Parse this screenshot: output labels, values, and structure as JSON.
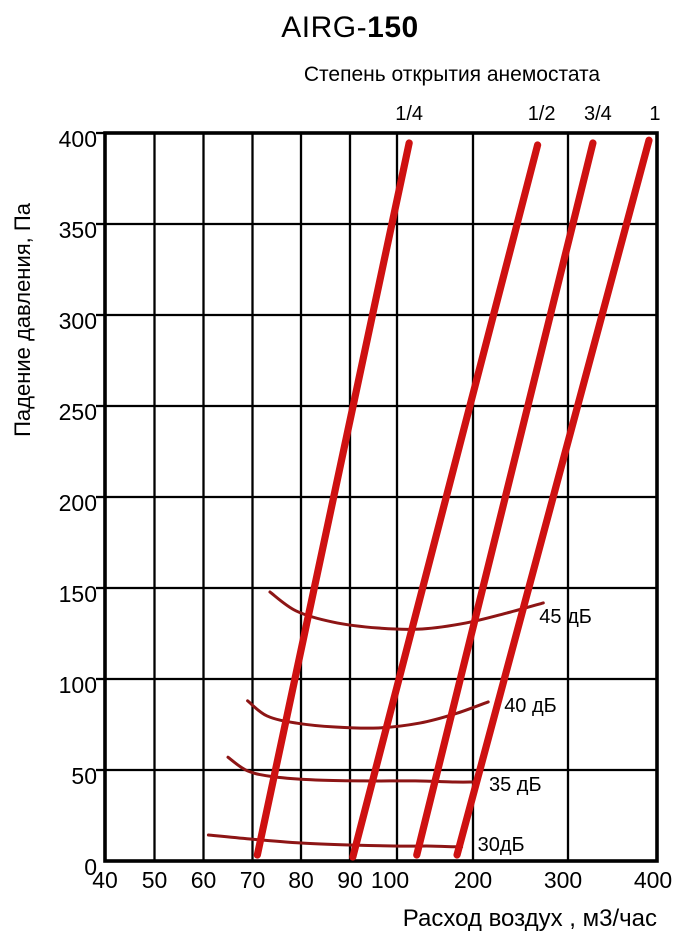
{
  "title": {
    "prefix": "AIRG-",
    "model": "150",
    "full": "AIRG-150"
  },
  "chart_data": {
    "type": "line",
    "title": "AIRG-150",
    "top_axis": {
      "label": "Степень открытия анемостата",
      "tick_labels": [
        "1/4",
        "1/2",
        "3/4",
        "1"
      ]
    },
    "x_axis": {
      "label": "Расход воздух , м3/час",
      "ticks": [
        40,
        50,
        60,
        70,
        80,
        90,
        100,
        200,
        300,
        400
      ],
      "range": [
        40,
        400
      ],
      "scale": "compressed-log-like"
    },
    "y_axis": {
      "label": "Падение давления, Па",
      "ticks": [
        0,
        50,
        100,
        150,
        200,
        250,
        300,
        350,
        400
      ],
      "range": [
        0,
        400
      ],
      "unit": "Па"
    },
    "grid": true,
    "colors": {
      "opening_line": "#ce1111",
      "noise_line": "#8d1515",
      "axis": "#000000"
    },
    "opening_series": [
      {
        "name": "1/4",
        "points": [
          [
            71,
            3.3
          ],
          [
            116,
            394.5
          ]
        ]
      },
      {
        "name": "1/2",
        "points": [
          [
            90.6,
            2.2
          ],
          [
            268,
            393.4
          ]
        ]
      },
      {
        "name": "3/4",
        "points": [
          [
            126,
            3.3
          ],
          [
            328,
            394.5
          ]
        ]
      },
      {
        "name": "1",
        "points": [
          [
            179,
            3.3
          ],
          [
            391,
            396
          ]
        ]
      }
    ],
    "noise_series": [
      {
        "name": "30дБ",
        "points": [
          [
            61,
            14.3
          ],
          [
            69.5,
            12.1
          ],
          [
            80,
            9.9
          ],
          [
            90,
            8.8
          ],
          [
            104,
            8.2
          ],
          [
            146,
            8.2
          ],
          [
            185,
            7.7
          ]
        ]
      },
      {
        "name": "35 дБ",
        "points": [
          [
            65,
            57
          ],
          [
            69,
            49.5
          ],
          [
            74.6,
            46.2
          ],
          [
            83,
            44.5
          ],
          [
            93,
            44
          ],
          [
            124,
            44
          ],
          [
            176,
            43.4
          ],
          [
            200,
            43.4
          ]
        ]
      },
      {
        "name": "40 дБ",
        "points": [
          [
            69,
            88
          ],
          [
            73,
            79.7
          ],
          [
            79,
            75.8
          ],
          [
            87,
            73.6
          ],
          [
            96,
            73.1
          ],
          [
            130,
            75.8
          ],
          [
            176,
            80.8
          ],
          [
            216,
            87.4
          ]
        ]
      },
      {
        "name": "45 дБ",
        "points": [
          [
            73.6,
            147.8
          ],
          [
            79,
            137.4
          ],
          [
            86.5,
            131.3
          ],
          [
            96,
            128
          ],
          [
            133,
            127.5
          ],
          [
            191,
            130.8
          ],
          [
            236,
            136.3
          ],
          [
            274,
            141.8
          ]
        ]
      }
    ]
  }
}
